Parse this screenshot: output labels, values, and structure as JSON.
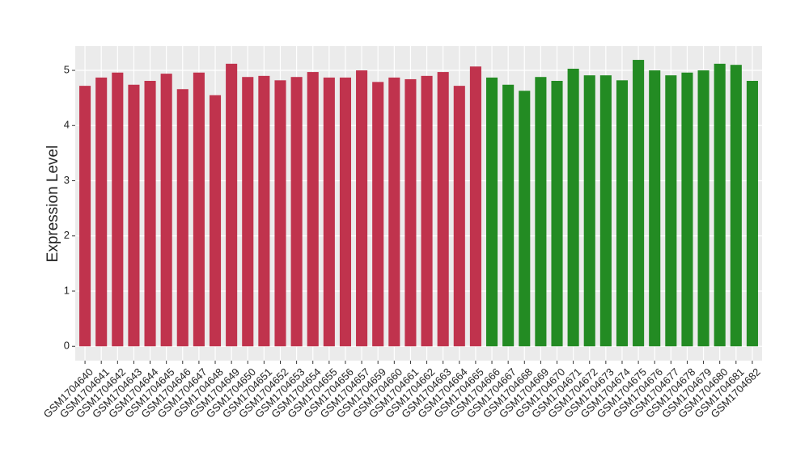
{
  "chart_data": {
    "type": "bar",
    "y_label": "Expression Level",
    "categories": [
      "GSM1704640",
      "GSM1704641",
      "GSM1704642",
      "GSM1704643",
      "GSM1704644",
      "GSM1704645",
      "GSM1704646",
      "GSM1704647",
      "GSM1704648",
      "GSM1704649",
      "GSM1704650",
      "GSM1704651",
      "GSM1704652",
      "GSM1704653",
      "GSM1704654",
      "GSM1704655",
      "GSM1704656",
      "GSM1704657",
      "GSM1704659",
      "GSM1704660",
      "GSM1704661",
      "GSM1704662",
      "GSM1704663",
      "GSM1704664",
      "GSM1704665",
      "GSM1704666",
      "GSM1704667",
      "GSM1704668",
      "GSM1704669",
      "GSM1704670",
      "GSM1704671",
      "GSM1704672",
      "GSM1704673",
      "GSM1704674",
      "GSM1704675",
      "GSM1704676",
      "GSM1704677",
      "GSM1704678",
      "GSM1704679",
      "GSM1704680",
      "GSM1704681",
      "GSM1704682"
    ],
    "values": [
      4.72,
      4.87,
      4.96,
      4.74,
      4.81,
      4.94,
      4.66,
      4.96,
      4.55,
      5.12,
      4.88,
      4.9,
      4.82,
      4.88,
      4.97,
      4.87,
      4.87,
      5.0,
      4.79,
      4.87,
      4.84,
      4.9,
      4.97,
      4.72,
      5.07,
      4.87,
      4.74,
      4.63,
      4.88,
      4.81,
      5.03,
      4.91,
      4.91,
      4.82,
      5.19,
      5.0,
      4.91,
      4.96,
      5.0,
      5.12,
      5.1,
      4.81
    ],
    "colors": [
      "#c0334d",
      "#c0334d",
      "#c0334d",
      "#c0334d",
      "#c0334d",
      "#c0334d",
      "#c0334d",
      "#c0334d",
      "#c0334d",
      "#c0334d",
      "#c0334d",
      "#c0334d",
      "#c0334d",
      "#c0334d",
      "#c0334d",
      "#c0334d",
      "#c0334d",
      "#c0334d",
      "#c0334d",
      "#c0334d",
      "#c0334d",
      "#c0334d",
      "#c0334d",
      "#c0334d",
      "#c0334d",
      "#238b23",
      "#238b23",
      "#238b23",
      "#238b23",
      "#238b23",
      "#238b23",
      "#238b23",
      "#238b23",
      "#238b23",
      "#238b23",
      "#238b23",
      "#238b23",
      "#238b23",
      "#238b23",
      "#238b23",
      "#238b23",
      "#238b23"
    ],
    "ylim": [
      -0.26,
      5.44
    ],
    "yticks": [
      0,
      1,
      2,
      3,
      4,
      5
    ],
    "grid": true
  }
}
